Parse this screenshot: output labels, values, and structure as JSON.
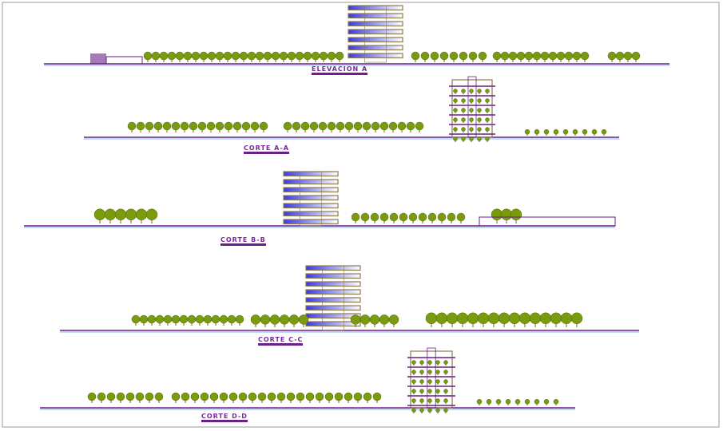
{
  "drawing": {
    "sections": [
      {
        "label": "ELEVACION A"
      },
      {
        "label": "CORTE A-A"
      },
      {
        "label": "CORTE B-B"
      },
      {
        "label": "CORTE C-C"
      },
      {
        "label": "CORTE D-D"
      }
    ],
    "colors": {
      "tree": "#7a9a10",
      "structure": "#6a1f8a",
      "glass": "#3a3ae0",
      "tower": "#8a7a50",
      "ground": "#4aa0e0"
    }
  }
}
